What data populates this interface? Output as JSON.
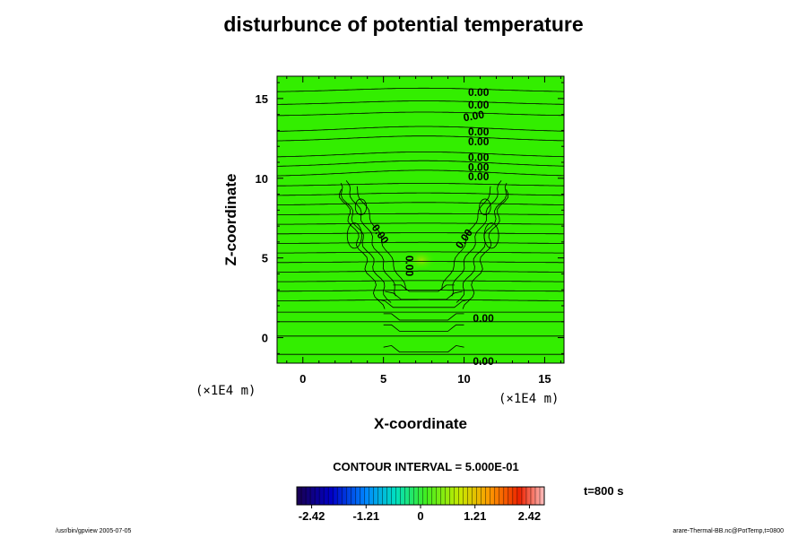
{
  "header": {
    "title": "disturbunce of potential temperature"
  },
  "chart_data": {
    "type": "heatmap",
    "title": "disturbunce of potential temperature",
    "xlabel": "X-coordinate",
    "ylabel": "Z-coordinate",
    "xunit": "(×1E4 m)",
    "yunit": "(×1E4 m)",
    "xlim": [
      -1.6,
      16.2
    ],
    "ylim": [
      -1.6,
      16.4
    ],
    "xticks": [
      "0",
      "5",
      "10",
      "15"
    ],
    "yticks": [
      "0",
      "5",
      "10",
      "15"
    ],
    "xtick_values": [
      0,
      5,
      10,
      15
    ],
    "ytick_values": [
      0,
      5,
      10,
      15
    ],
    "fill_color": "#33ee00",
    "contour_interval": "CONTOUR INTERVAL = 5.000E-01",
    "time": "t=800 s",
    "colorbar": {
      "range": [
        -2.75,
        2.75
      ],
      "ticks": [
        "-2.42",
        "-1.21",
        "0",
        "1.21",
        "2.42"
      ],
      "tick_values": [
        -2.42,
        -1.21,
        0,
        1.21,
        2.42
      ]
    },
    "contour_labels": [
      {
        "text": "0.00",
        "x": 10.9,
        "z": 15.4,
        "rotate": 0
      },
      {
        "text": "0.00",
        "x": 10.9,
        "z": 14.6,
        "rotate": 0
      },
      {
        "text": "0.00",
        "x": 10.6,
        "z": 13.9,
        "rotate": -10
      },
      {
        "text": "0.00",
        "x": 10.9,
        "z": 12.9,
        "rotate": 0
      },
      {
        "text": "0.00",
        "x": 10.9,
        "z": 12.3,
        "rotate": 0
      },
      {
        "text": "0.00",
        "x": 10.9,
        "z": 11.3,
        "rotate": 0
      },
      {
        "text": "0.00",
        "x": 10.9,
        "z": 10.7,
        "rotate": 0
      },
      {
        "text": "0.00",
        "x": 10.9,
        "z": 10.1,
        "rotate": 0
      },
      {
        "text": "0.00",
        "x": 4.8,
        "z": 6.5,
        "rotate": 55
      },
      {
        "text": "0.00",
        "x": 10.0,
        "z": 6.2,
        "rotate": -55
      },
      {
        "text": "0.00",
        "x": 6.6,
        "z": 4.5,
        "rotate": 90
      },
      {
        "text": "0.00",
        "x": 11.2,
        "z": 1.2,
        "rotate": 0
      },
      {
        "text": "0.00",
        "x": 11.2,
        "z": -1.5,
        "rotate": 0
      }
    ]
  },
  "footer": {
    "left": "/usr/bin/gpview 2005-07-05",
    "right": "arare-Thermal-BB.nc@PotTemp,t=0800"
  }
}
